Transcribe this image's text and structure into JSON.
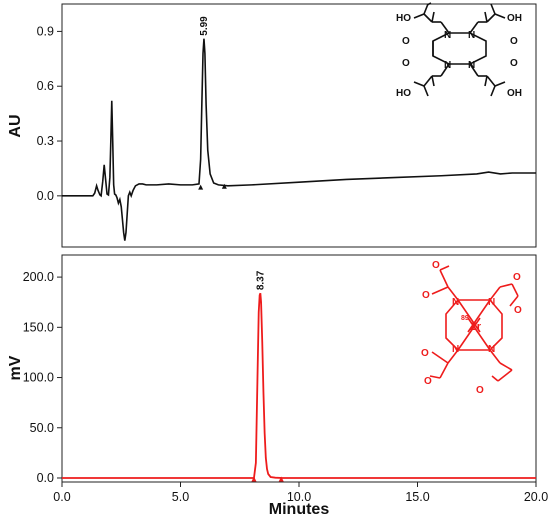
{
  "chart_data": [
    {
      "type": "line",
      "ylabel": "AU",
      "xlim": [
        0,
        20
      ],
      "ylim": [
        -0.28,
        1.05
      ],
      "yticks": [
        "0.0",
        "0.3",
        "0.6",
        "0.9"
      ],
      "ytick_values": [
        0.0,
        0.3,
        0.6,
        0.9
      ],
      "color": "#111111",
      "peak_label": "5.99",
      "peak_label_x": 5.99,
      "peak_label_y": 0.86,
      "integration_markers": [
        [
          5.85,
          0.045
        ],
        [
          6.85,
          0.05
        ]
      ],
      "x": [
        0,
        1.3,
        1.38,
        1.46,
        1.52,
        1.6,
        1.65,
        1.72,
        1.78,
        1.84,
        1.9,
        1.96,
        2.02,
        2.06,
        2.1,
        2.14,
        2.18,
        2.22,
        2.27,
        2.32,
        2.38,
        2.44,
        2.5,
        2.55,
        2.6,
        2.65,
        2.7,
        2.75,
        2.8,
        2.86,
        2.92,
        3.0,
        3.1,
        3.25,
        3.4,
        3.55,
        3.7,
        4.0,
        4.5,
        5.0,
        5.5,
        5.78,
        5.85,
        5.9,
        5.95,
        5.99,
        6.03,
        6.08,
        6.15,
        6.25,
        6.4,
        6.6,
        7.0,
        8.0,
        10.0,
        12.0,
        14.0,
        16.0,
        17.5,
        18.0,
        18.5,
        19.0,
        20.0
      ],
      "values": [
        0.0,
        0.0,
        0.015,
        0.055,
        0.03,
        0.005,
        0.0,
        0.08,
        0.17,
        0.09,
        0.01,
        0.005,
        0.1,
        0.3,
        0.52,
        0.3,
        0.06,
        0.01,
        0.005,
        -0.01,
        -0.04,
        -0.02,
        -0.06,
        -0.13,
        -0.2,
        -0.245,
        -0.2,
        -0.1,
        0.0,
        0.02,
        0.0,
        0.03,
        0.055,
        0.065,
        0.065,
        0.06,
        0.06,
        0.06,
        0.065,
        0.06,
        0.06,
        0.065,
        0.2,
        0.5,
        0.78,
        0.86,
        0.78,
        0.5,
        0.25,
        0.12,
        0.07,
        0.06,
        0.055,
        0.06,
        0.075,
        0.09,
        0.1,
        0.11,
        0.12,
        0.13,
        0.12,
        0.125,
        0.125
      ]
    },
    {
      "type": "line",
      "ylabel": "mV",
      "xlabel": "Minutes",
      "xlim": [
        0,
        20
      ],
      "ylim": [
        -4,
        222
      ],
      "xticks": [
        "0.0",
        "5.0",
        "10.0",
        "15.0",
        "20.0"
      ],
      "xtick_values": [
        0,
        5,
        10,
        15,
        20
      ],
      "yticks": [
        "0.0",
        "50.0",
        "100.0",
        "150.0",
        "200.0"
      ],
      "ytick_values": [
        0,
        50,
        100,
        150,
        200
      ],
      "color": "#ee1c1c",
      "peak_label": "8.37",
      "peak_label_x": 8.37,
      "peak_label_y": 184,
      "integration_markers": [
        [
          8.1,
          -1.5
        ],
        [
          9.25,
          -1.5
        ]
      ],
      "x": [
        0,
        8.1,
        8.18,
        8.24,
        8.3,
        8.34,
        8.37,
        8.4,
        8.45,
        8.5,
        8.55,
        8.6,
        8.65,
        8.7,
        8.8,
        9.0,
        9.3,
        20.0
      ],
      "values": [
        0.0,
        0.0,
        15,
        90,
        165,
        182,
        184,
        175,
        135,
        85,
        45,
        20,
        9,
        4,
        1,
        0.3,
        0.0,
        0.0
      ]
    }
  ],
  "structures": {
    "top_labels": {
      "cooh": "OH",
      "ho": "HO",
      "n": "N",
      "o": "O"
    },
    "bottom_labels": {
      "o": "O",
      "n": "N",
      "zr": "Zr",
      "isotope": "89"
    }
  }
}
